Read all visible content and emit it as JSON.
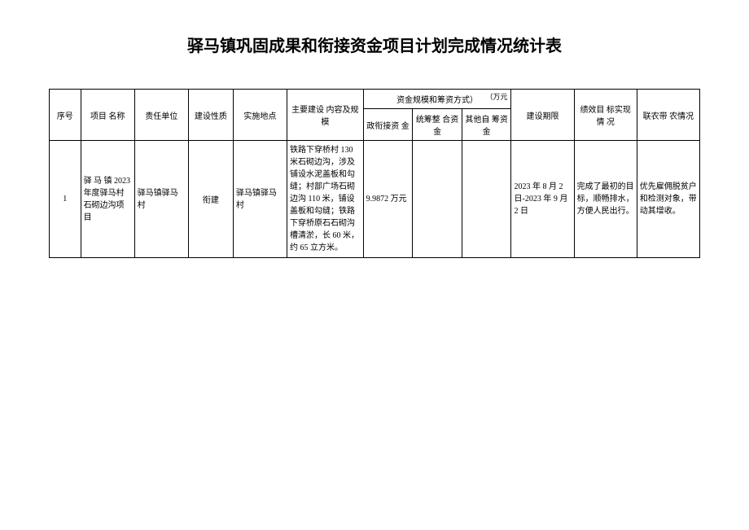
{
  "title": "驿马镇巩固成果和衔接资金项目计划完成情况统计表",
  "unit_label": "（万元",
  "headers": {
    "seq": "序号",
    "project_name": "项目\n名称",
    "responsible_unit": "责任单位",
    "construction_nature": "建设性质",
    "location": "实施地点",
    "main_content": "主要建设\n内容及规模",
    "fund_group": "资金规模和筹资方式）",
    "fund_connect": "政衔接资\n金",
    "fund_integrate": "统筹整\n合资金",
    "fund_other": "其他自\n筹资金",
    "period": "建设期限",
    "performance": "绩效目\n标实现情\n况",
    "farmer": "联农带\n农情况"
  },
  "rows": [
    {
      "seq": "1",
      "project_name": "驿 马 镇 2023 年度驿马村石砌边沟项目",
      "responsible_unit": "驿马镇驿马村",
      "construction_nature": "衔建",
      "location": "驿马镇驿马村",
      "main_content": "铁路下穿桥村 130 米石砌边沟，涉及铺设水泥盖板和勾缝；村部广场石砌边沟 110 米，铺设盖板和勾缝；铁路下穿桥原石石砌沟槽清淤，长 60 米，约 65 立方米。",
      "fund_connect": "9.9872 万元",
      "fund_integrate": "",
      "fund_other": "",
      "period": "2023 年 8 月 2 日-2023 年 9 月 2 日",
      "performance": "完成了最初的目标，顺畅排水，方便人民出行。",
      "farmer": "优先雇佣脱贫户和检测对象，带动其增收。"
    }
  ]
}
